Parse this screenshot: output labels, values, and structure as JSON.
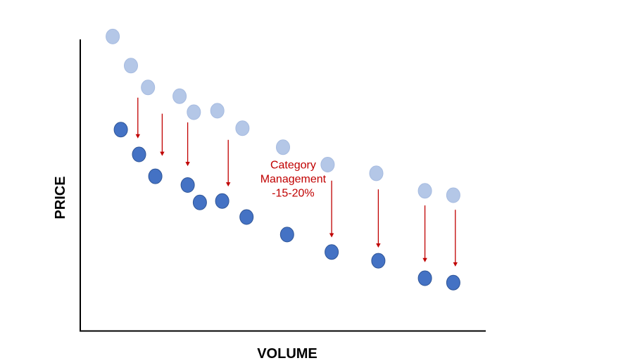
{
  "chart_data": {
    "type": "scatter",
    "title": "",
    "xlabel": "VOLUME",
    "ylabel": "PRICE",
    "xlim": [
      0,
      100
    ],
    "ylim": [
      0,
      100
    ],
    "grid": false,
    "legend": "none",
    "colors": {
      "before": "#b4c7e7",
      "after": "#4472c4",
      "arrow": "#c00000",
      "annotation": "#c00000"
    },
    "series": [
      {
        "role": "before",
        "points": [
          {
            "x": 8,
            "y": 101
          },
          {
            "x": 12.5,
            "y": 91
          },
          {
            "x": 16.7,
            "y": 83.5
          },
          {
            "x": 24.5,
            "y": 80.5
          },
          {
            "x": 28,
            "y": 75
          },
          {
            "x": 33.8,
            "y": 75.5
          },
          {
            "x": 40,
            "y": 69.5
          },
          {
            "x": 50,
            "y": 63
          },
          {
            "x": 61,
            "y": 57
          },
          {
            "x": 73,
            "y": 54
          },
          {
            "x": 85,
            "y": 48
          },
          {
            "x": 92,
            "y": 46.5
          }
        ]
      },
      {
        "role": "after",
        "points": [
          {
            "x": 10,
            "y": 69
          },
          {
            "x": 14.5,
            "y": 60.5
          },
          {
            "x": 18.5,
            "y": 53
          },
          {
            "x": 26.5,
            "y": 50
          },
          {
            "x": 29.5,
            "y": 44
          },
          {
            "x": 35,
            "y": 44.5
          },
          {
            "x": 41,
            "y": 39
          },
          {
            "x": 51,
            "y": 33
          },
          {
            "x": 62,
            "y": 27
          },
          {
            "x": 73.5,
            "y": 24
          },
          {
            "x": 85,
            "y": 18
          },
          {
            "x": 92,
            "y": 16.5
          }
        ]
      }
    ],
    "arrows": [
      {
        "x": 14.2,
        "y_from": 80,
        "y_to": 66
      },
      {
        "x": 20.2,
        "y_from": 74.5,
        "y_to": 60
      },
      {
        "x": 26.5,
        "y_from": 71.5,
        "y_to": 56.5
      },
      {
        "x": 36.5,
        "y_from": 65.5,
        "y_to": 49.5
      },
      {
        "x": 62,
        "y_from": 51.5,
        "y_to": 32
      },
      {
        "x": 73.5,
        "y_from": 48.5,
        "y_to": 28.5
      },
      {
        "x": 85,
        "y_from": 43,
        "y_to": 23.5
      },
      {
        "x": 92.5,
        "y_from": 41.5,
        "y_to": 22
      }
    ],
    "annotation": {
      "lines": [
        "Category",
        "Management",
        "-15-20%"
      ],
      "x": 52.5,
      "y": 52
    }
  }
}
